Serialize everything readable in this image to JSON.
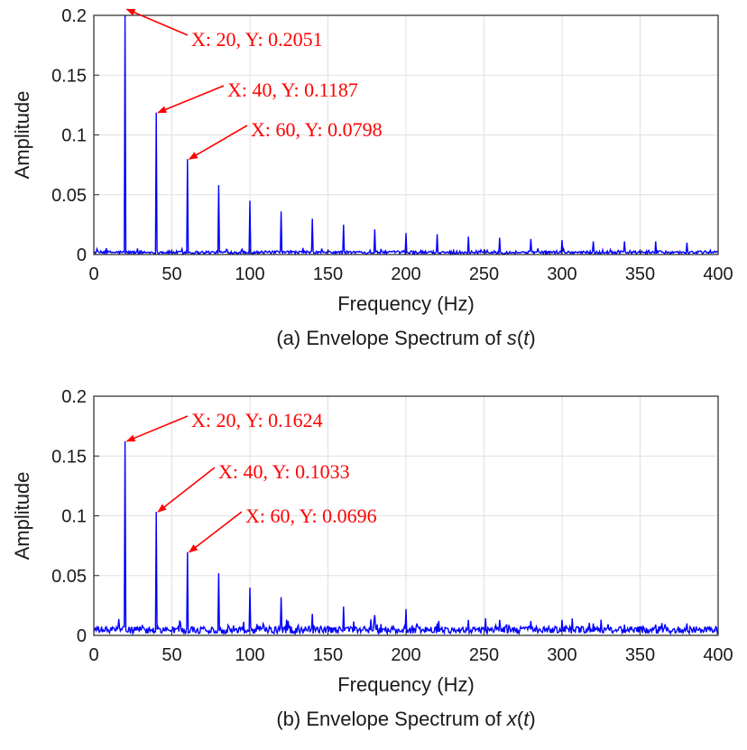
{
  "chart_data": [
    {
      "type": "line",
      "caption_prefix": "(a) Envelope Spectrum of ",
      "caption_var": "s",
      "caption_paren_open": "(",
      "caption_arg": "t",
      "caption_paren_close": ")",
      "xlabel": "Frequency (Hz)",
      "ylabel": "Amplitude",
      "xlim": [
        0,
        400
      ],
      "ylim": [
        0,
        0.2
      ],
      "grid": true,
      "line_color": "#0000ff",
      "annotation_color": "#ff0000",
      "xticks": [
        "0",
        "50",
        "100",
        "150",
        "200",
        "250",
        "300",
        "350",
        "400"
      ],
      "yticks": [
        "0",
        "0.05",
        "0.1",
        "0.15",
        "0.2"
      ],
      "peaks": {
        "x": [
          20,
          40,
          60,
          80,
          100,
          120,
          140,
          160,
          180,
          200,
          220,
          240,
          260,
          280,
          300,
          320,
          340,
          360,
          380
        ],
        "y": [
          0.2051,
          0.1187,
          0.0798,
          0.058,
          0.045,
          0.036,
          0.03,
          0.025,
          0.021,
          0.018,
          0.017,
          0.015,
          0.014,
          0.013,
          0.012,
          0.011,
          0.011,
          0.011,
          0.01
        ]
      },
      "noise_level": 0.002,
      "annotations": [
        {
          "text": "X: 20, Y: 0.2051",
          "x": 20,
          "y": 0.2051
        },
        {
          "text": "X: 40, Y: 0.1187",
          "x": 40,
          "y": 0.1187
        },
        {
          "text": "X: 60, Y: 0.0798",
          "x": 60,
          "y": 0.0798
        }
      ]
    },
    {
      "type": "line",
      "caption_prefix": "(b) Envelope Spectrum of ",
      "caption_var": "x",
      "caption_paren_open": "(",
      "caption_arg": "t",
      "caption_paren_close": ")",
      "xlabel": "Frequency (Hz)",
      "ylabel": "Amplitude",
      "xlim": [
        0,
        400
      ],
      "ylim": [
        0,
        0.2
      ],
      "grid": true,
      "line_color": "#0000ff",
      "annotation_color": "#ff0000",
      "xticks": [
        "0",
        "50",
        "100",
        "150",
        "200",
        "250",
        "300",
        "350",
        "400"
      ],
      "yticks": [
        "0",
        "0.05",
        "0.1",
        "0.15",
        "0.2"
      ],
      "peaks": {
        "x": [
          20,
          40,
          60,
          80,
          100,
          120,
          140,
          160,
          180,
          200,
          220,
          240,
          260,
          280,
          300,
          320,
          340,
          360,
          380
        ],
        "y": [
          0.1624,
          0.1033,
          0.0696,
          0.052,
          0.04,
          0.032,
          0.018,
          0.024,
          0.017,
          0.022,
          0.01,
          0.013,
          0.013,
          0.012,
          0.013,
          0.01,
          0.009,
          0.009,
          0.01
        ]
      },
      "noise_level": 0.005,
      "annotations": [
        {
          "text": "X: 20, Y: 0.1624",
          "x": 20,
          "y": 0.1624
        },
        {
          "text": "X: 40, Y: 0.1033",
          "x": 40,
          "y": 0.1033
        },
        {
          "text": "X: 60, Y: 0.0696",
          "x": 60,
          "y": 0.0696
        }
      ]
    }
  ]
}
